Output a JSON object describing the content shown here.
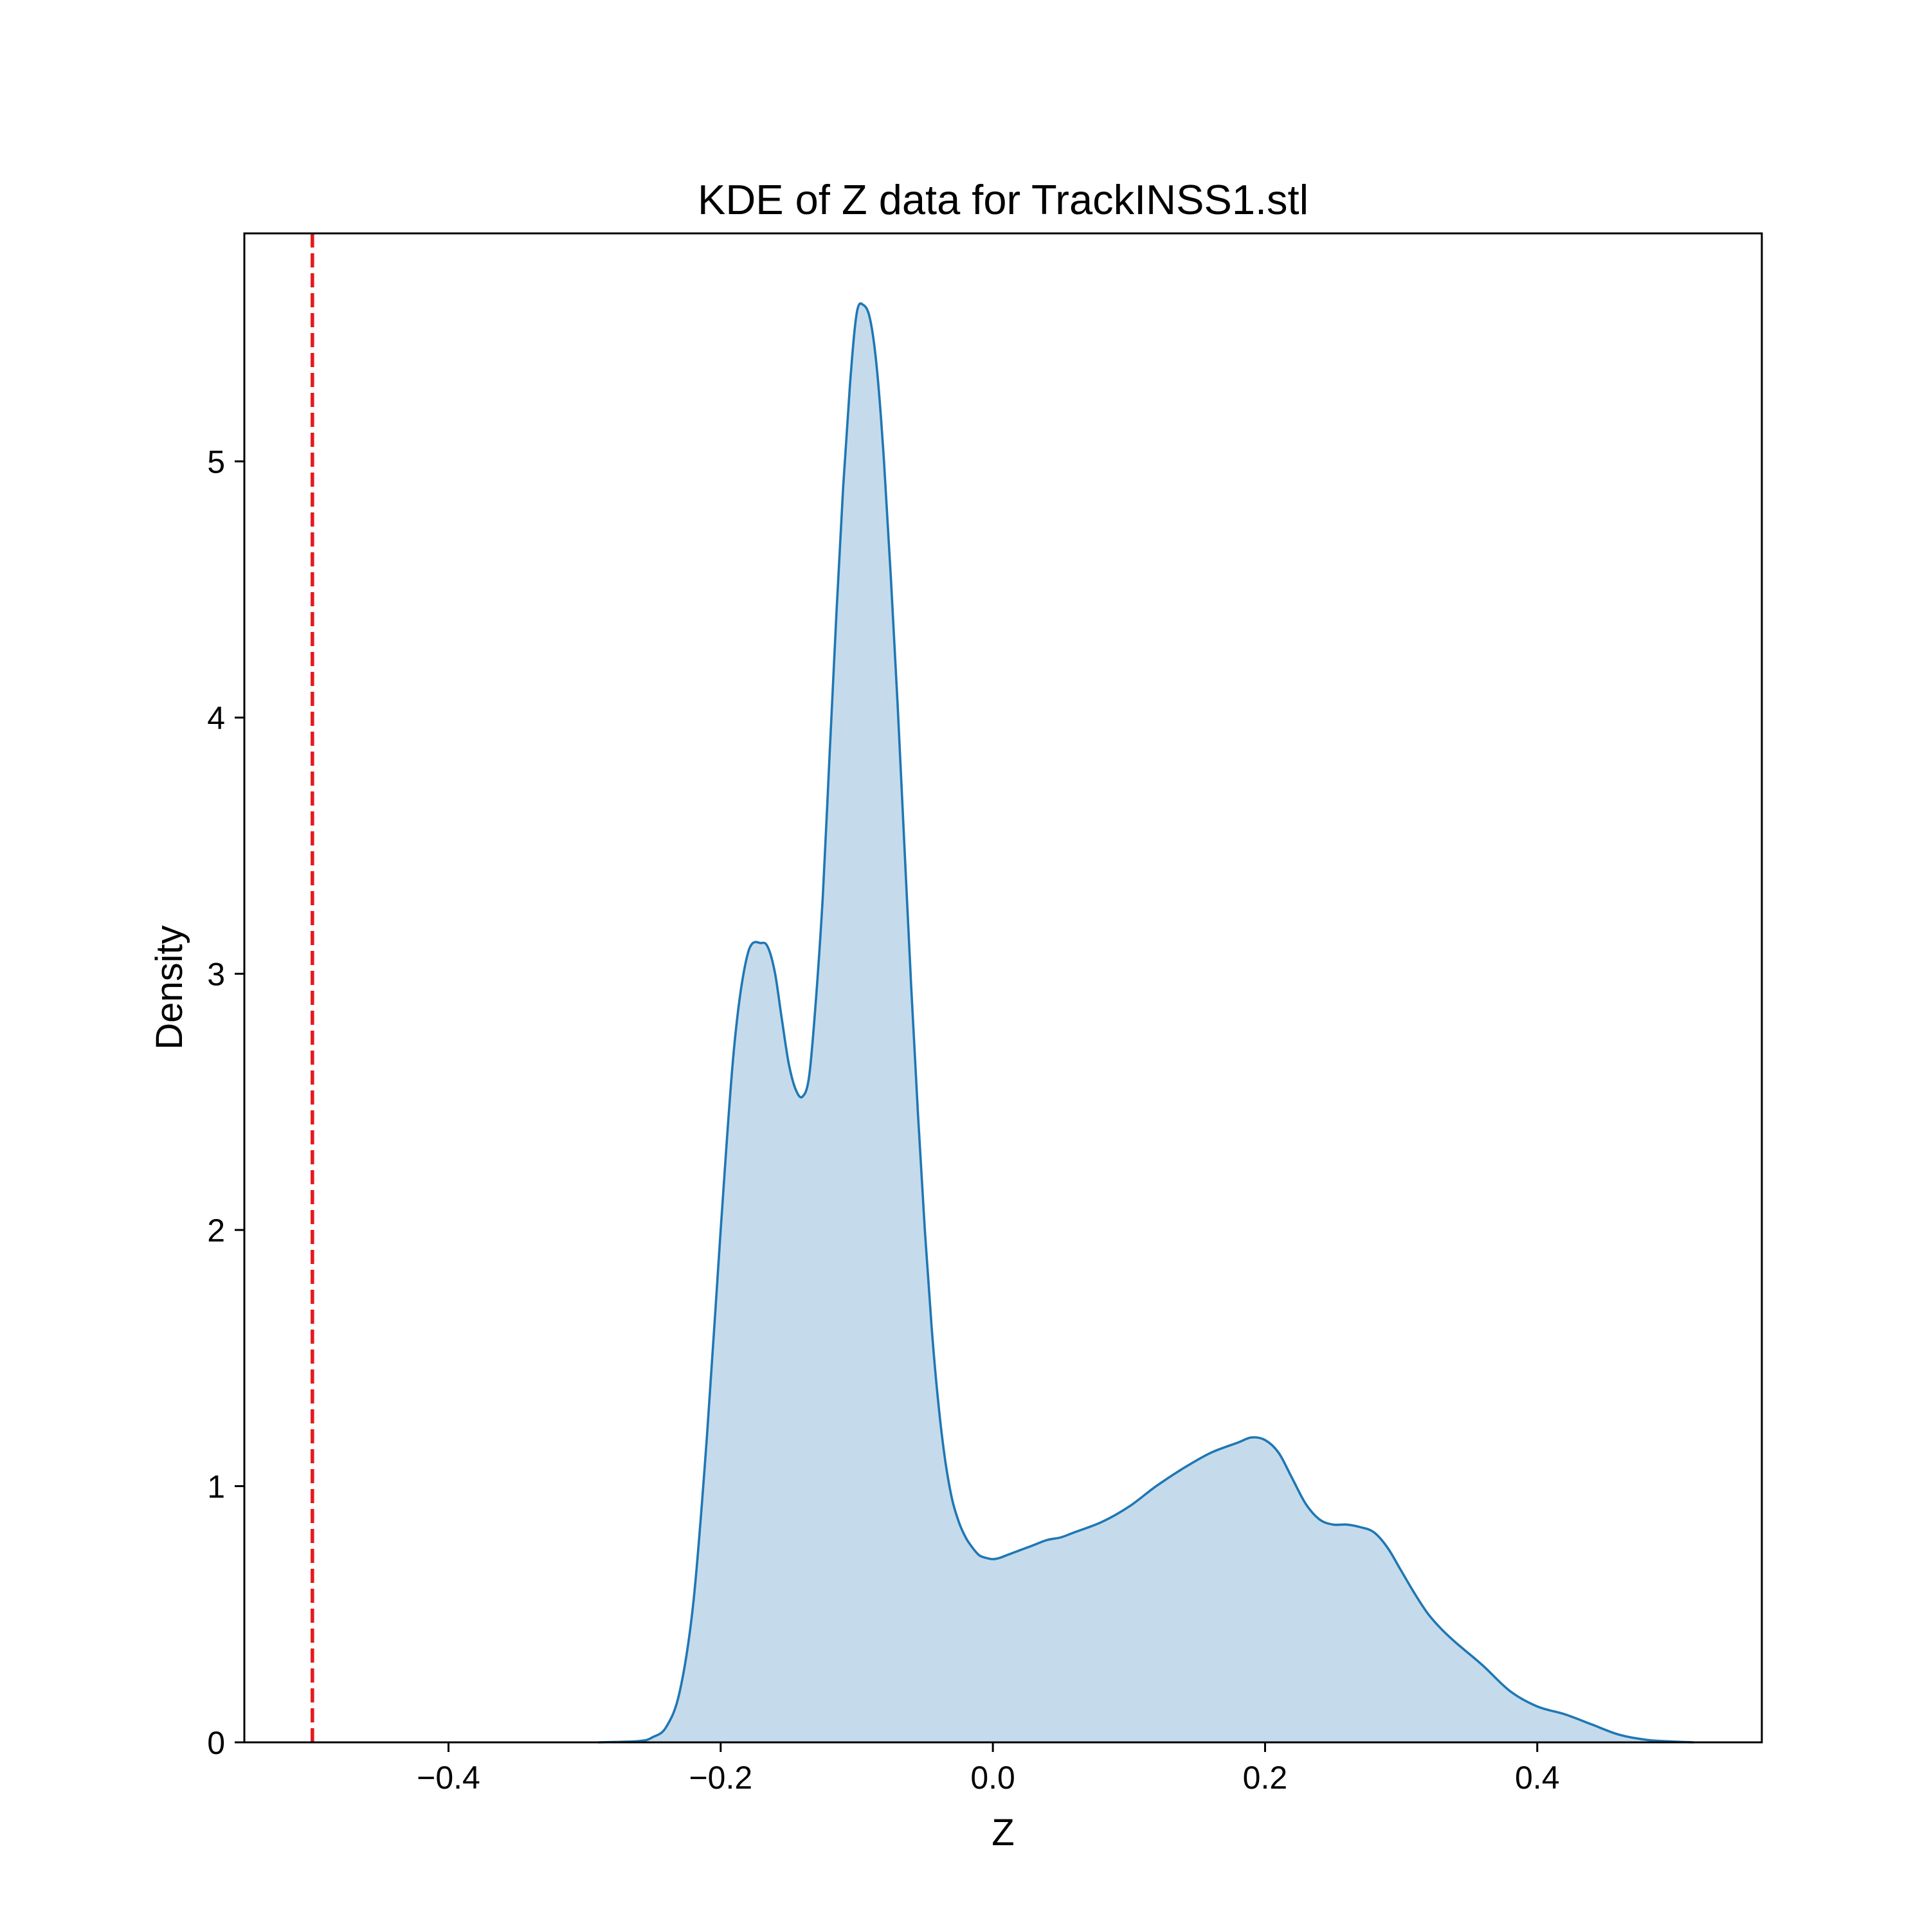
{
  "chart_data": {
    "type": "area",
    "title": "KDE of Z data for TrackINSS1.stl",
    "xlabel": "Z",
    "ylabel": "Density",
    "xlim": [
      -0.55,
      0.565
    ],
    "ylim": [
      0,
      5.89
    ],
    "xticks": [
      -0.4,
      -0.2,
      0.0,
      0.2,
      0.4
    ],
    "xtick_labels": [
      "−0.4",
      "−0.2",
      "0.0",
      "0.2",
      "0.4"
    ],
    "yticks": [
      0,
      1,
      2,
      3,
      4,
      5
    ],
    "ytick_labels": [
      "0",
      "1",
      "2",
      "3",
      "4",
      "5"
    ],
    "grid": false,
    "legend": "none",
    "series": [
      {
        "color": "#1f77b4",
        "fill_color": "#c5dbec",
        "x": [
          -0.29,
          -0.26,
          -0.25,
          -0.24,
          -0.23,
          -0.22,
          -0.21,
          -0.2,
          -0.19,
          -0.18,
          -0.17,
          -0.165,
          -0.16,
          -0.155,
          -0.15,
          -0.145,
          -0.14,
          -0.135,
          -0.13,
          -0.125,
          -0.12,
          -0.115,
          -0.11,
          -0.105,
          -0.1,
          -0.095,
          -0.09,
          -0.085,
          -0.08,
          -0.075,
          -0.07,
          -0.065,
          -0.06,
          -0.055,
          -0.05,
          -0.045,
          -0.04,
          -0.035,
          -0.03,
          -0.025,
          -0.02,
          -0.015,
          -0.01,
          -0.005,
          0.0,
          0.005,
          0.01,
          0.015,
          0.02,
          0.025,
          0.03,
          0.04,
          0.05,
          0.06,
          0.08,
          0.1,
          0.12,
          0.14,
          0.16,
          0.18,
          0.19,
          0.2,
          0.21,
          0.22,
          0.23,
          0.24,
          0.25,
          0.26,
          0.27,
          0.28,
          0.29,
          0.3,
          0.31,
          0.32,
          0.33,
          0.34,
          0.36,
          0.38,
          0.4,
          0.42,
          0.44,
          0.46,
          0.48,
          0.5,
          0.515
        ],
        "y": [
          0.0,
          0.005,
          0.02,
          0.06,
          0.2,
          0.55,
          1.2,
          2.0,
          2.72,
          3.08,
          3.12,
          3.1,
          3.0,
          2.82,
          2.65,
          2.55,
          2.52,
          2.6,
          2.9,
          3.3,
          3.85,
          4.4,
          4.9,
          5.3,
          5.58,
          5.61,
          5.55,
          5.35,
          5.0,
          4.55,
          4.05,
          3.5,
          2.95,
          2.45,
          2.0,
          1.62,
          1.32,
          1.1,
          0.95,
          0.86,
          0.8,
          0.76,
          0.73,
          0.72,
          0.715,
          0.72,
          0.73,
          0.74,
          0.75,
          0.76,
          0.77,
          0.79,
          0.8,
          0.82,
          0.86,
          0.92,
          1.0,
          1.07,
          1.13,
          1.17,
          1.19,
          1.18,
          1.13,
          1.03,
          0.93,
          0.87,
          0.85,
          0.85,
          0.84,
          0.82,
          0.76,
          0.67,
          0.58,
          0.5,
          0.44,
          0.39,
          0.3,
          0.2,
          0.14,
          0.11,
          0.07,
          0.03,
          0.01,
          0.003,
          0.0
        ]
      }
    ],
    "reference_line": {
      "x": -0.5,
      "color": "#e41a1c",
      "style": "dashed"
    }
  }
}
